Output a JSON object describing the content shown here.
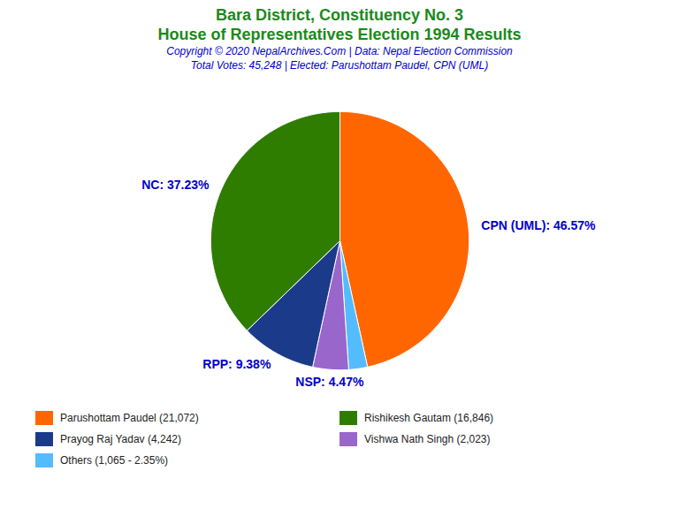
{
  "chart_data": {
    "type": "pie",
    "title": "Bara District, Constituency No. 3\nHouse of Representatives Election 1994 Results",
    "subtitle": [
      "Copyright © 2020 NepalArchives.Com | Data: Nepal Election Commission",
      "Total Votes: 45,248 | Elected: Parushottam Paudel, CPN (UML)"
    ],
    "values": [
      46.57,
      2.35,
      4.47,
      9.38,
      37.23
    ],
    "value_labels": [
      "CPN (UML): 46.57%",
      null,
      "NSP: 4.47%",
      "RPP: 9.38%",
      "NC: 37.23%"
    ],
    "colors": [
      "#FF6600",
      "#55BBFF",
      "#9966CC",
      "#1C3A8A",
      "#2E7D00"
    ],
    "data_labels": true,
    "legend": "bottom",
    "legend_entries": [
      {
        "name": "Parushottam Paudel (21,072)",
        "color": "#FF6600"
      },
      {
        "name": "Rishikesh Gautam (16,846)",
        "color": "#2E7D00"
      },
      {
        "name": "Prayog Raj Yadav (4,242)",
        "color": "#1C3A8A"
      },
      {
        "name": "Vishwa Nath Singh (2,023)",
        "color": "#9966CC"
      },
      {
        "name": "Others (1,065 - 2.35%)",
        "color": "#55BBFF"
      }
    ]
  }
}
